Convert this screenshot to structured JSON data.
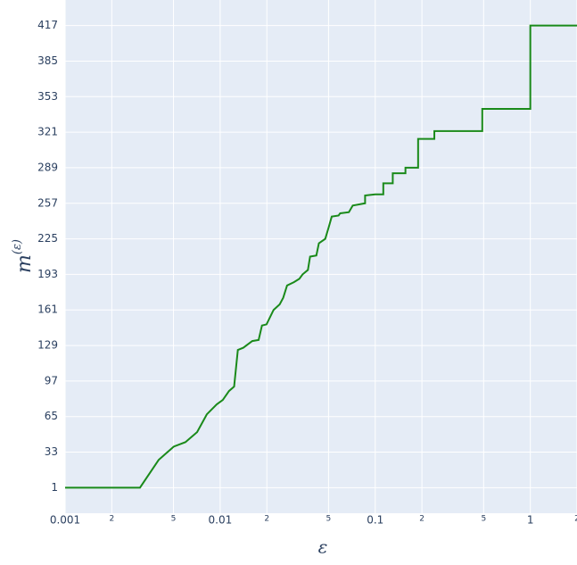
{
  "chart_data": {
    "type": "line",
    "xlabel": "ε",
    "ylabel": [
      "m",
      "(ε)"
    ],
    "xscale": "log",
    "grid": true,
    "xlim": [
      0.001,
      2
    ],
    "ylim": [
      -22,
      440
    ],
    "xticks": [
      {
        "value": 0.001,
        "label": "0.001"
      },
      {
        "value": 0.002,
        "label": "2"
      },
      {
        "value": 0.005,
        "label": "5"
      },
      {
        "value": 0.01,
        "label": "0.01"
      },
      {
        "value": 0.02,
        "label": "2"
      },
      {
        "value": 0.05,
        "label": "5"
      },
      {
        "value": 0.1,
        "label": "0.1"
      },
      {
        "value": 0.2,
        "label": "2"
      },
      {
        "value": 0.5,
        "label": "5"
      },
      1,
      2
    ],
    "yticks": [
      1,
      33,
      65,
      97,
      129,
      161,
      193,
      225,
      257,
      289,
      321,
      353,
      385,
      417
    ],
    "x": [
      0.001,
      0.00304,
      0.00401,
      0.00502,
      0.00597,
      0.0071,
      0.0082,
      0.0095,
      0.0104,
      0.0114,
      0.0123,
      0.013,
      0.0141,
      0.0161,
      0.0177,
      0.0186,
      0.0199,
      0.0221,
      0.0242,
      0.0255,
      0.027,
      0.0299,
      0.0324,
      0.034,
      0.0368,
      0.038,
      0.0417,
      0.0433,
      0.0476,
      0.05,
      0.0524,
      0.058,
      0.0594,
      0.0676,
      0.0716,
      0.0786,
      0.086,
      0.086,
      0.1,
      0.1127,
      0.1127,
      0.1297,
      0.1297,
      0.1566,
      0.1566,
      0.189,
      0.189,
      0.2405,
      0.2405,
      0.49,
      0.49,
      1,
      1,
      2
    ],
    "series": [
      {
        "color": "#1a8a1a",
        "values": [
          1,
          1,
          26,
          38,
          42,
          51,
          67,
          76,
          80,
          88,
          92,
          125,
          127,
          133,
          134,
          147,
          148,
          161,
          166,
          172,
          183,
          186,
          189,
          193,
          197,
          209,
          210,
          221,
          225,
          235,
          245,
          246,
          248,
          249,
          255,
          256,
          257,
          264,
          265,
          265,
          275,
          275,
          284,
          284,
          289,
          289,
          315,
          315,
          322,
          322,
          342,
          342,
          417,
          417
        ]
      }
    ]
  }
}
